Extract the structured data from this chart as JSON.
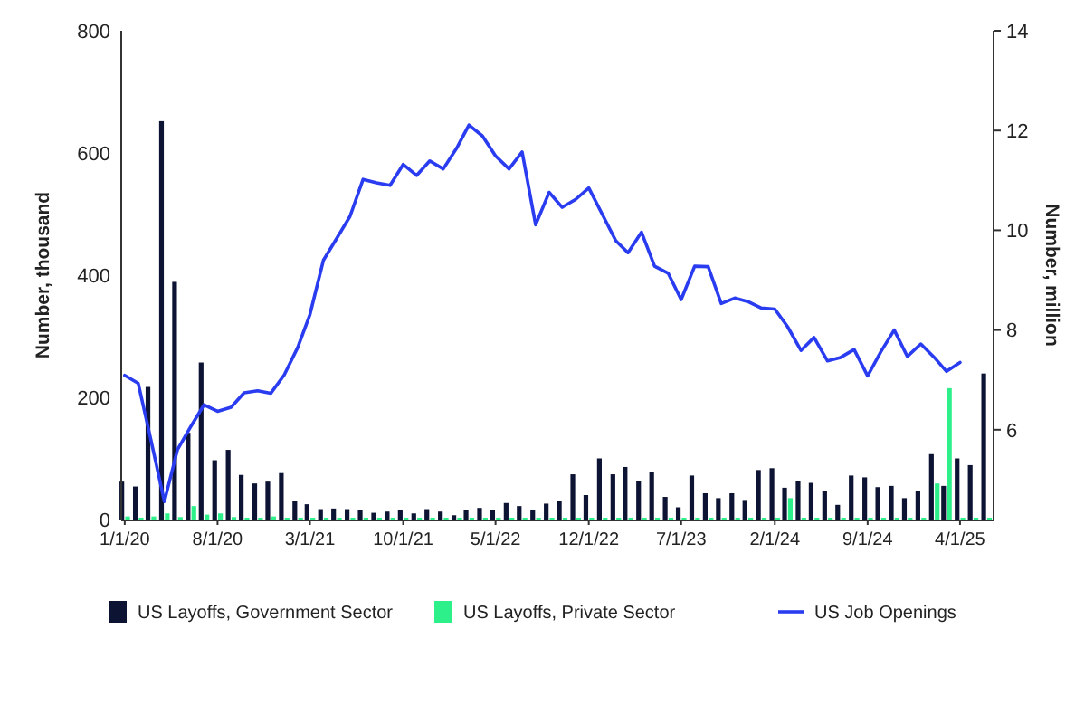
{
  "chart_data": {
    "type": "bar",
    "xlim": [
      "2019-12-24",
      "2025-06-17"
    ],
    "xticks": [
      {
        "value": "2020-01-01",
        "label": "1/1/20"
      },
      {
        "value": "2020-08-01",
        "label": "8/1/20"
      },
      {
        "value": "2021-03-01",
        "label": "3/1/21"
      },
      {
        "value": "2021-10-01",
        "label": "10/1/21"
      },
      {
        "value": "2022-05-01",
        "label": "5/1/22"
      },
      {
        "value": "2022-12-01",
        "label": "12/1/22"
      },
      {
        "value": "2023-07-01",
        "label": "7/1/23"
      },
      {
        "value": "2024-02-01",
        "label": "2/1/24"
      },
      {
        "value": "2024-09-01",
        "label": "9/1/24"
      },
      {
        "value": "2025-04-01",
        "label": "4/1/25"
      }
    ],
    "ylim": [
      0,
      800
    ],
    "yticks": [
      0,
      200,
      400,
      600,
      800
    ],
    "y2lim": [
      4.2,
      14
    ],
    "y2ticks": [
      6,
      8,
      10,
      12,
      14
    ],
    "ylabel": "Number, thousand",
    "y2label": "Number, million",
    "legend": "bottom",
    "grid": false,
    "series": [
      {
        "name": "US Layoffs, Government Sector",
        "color": "#0d1433",
        "x": [
          "2020-01",
          "2020-02",
          "2020-03",
          "2020-04",
          "2020-05",
          "2020-06",
          "2020-07",
          "2020-08",
          "2020-09",
          "2020-10",
          "2020-11",
          "2020-12",
          "2021-01",
          "2021-02",
          "2021-03",
          "2021-04",
          "2021-05",
          "2021-06",
          "2021-07",
          "2021-08",
          "2021-09",
          "2021-10",
          "2021-11",
          "2021-12",
          "2022-01",
          "2022-02",
          "2022-03",
          "2022-04",
          "2022-05",
          "2022-06",
          "2022-07",
          "2022-08",
          "2022-09",
          "2022-10",
          "2022-11",
          "2022-12",
          "2023-01",
          "2023-02",
          "2023-03",
          "2023-04",
          "2023-05",
          "2023-06",
          "2023-07",
          "2023-08",
          "2023-09",
          "2023-10",
          "2023-11",
          "2023-12",
          "2024-01",
          "2024-02",
          "2024-03",
          "2024-04",
          "2024-05",
          "2024-06",
          "2024-07",
          "2024-08",
          "2024-09",
          "2024-10",
          "2024-11",
          "2024-12",
          "2025-01",
          "2025-02",
          "2025-03",
          "2025-04",
          "2025-05",
          "2025-06"
        ],
        "values": [
          62,
          54,
          217,
          652,
          389,
          142,
          257,
          97,
          114,
          73,
          59,
          62,
          76,
          31,
          25,
          17,
          18,
          17,
          16,
          11,
          13,
          16,
          10,
          17,
          13,
          7,
          16,
          19,
          16,
          27,
          22,
          15,
          26,
          31,
          74,
          40,
          100,
          74,
          86,
          63,
          78,
          37,
          20,
          72,
          43,
          35,
          43,
          32,
          81,
          84,
          52,
          63,
          60,
          46,
          24,
          72,
          69,
          53,
          55,
          35,
          46,
          107,
          55,
          100,
          89,
          239
        ]
      },
      {
        "name": "US Layoffs, Private Sector",
        "color": "#2ef08a",
        "x": [
          "2020-01",
          "2020-02",
          "2020-03",
          "2020-04",
          "2020-05",
          "2020-06",
          "2020-07",
          "2020-08",
          "2020-09",
          "2020-10",
          "2020-11",
          "2020-12",
          "2021-01",
          "2021-02",
          "2021-03",
          "2021-04",
          "2021-05",
          "2021-06",
          "2021-07",
          "2021-08",
          "2021-09",
          "2021-10",
          "2021-11",
          "2021-12",
          "2022-01",
          "2022-02",
          "2022-03",
          "2022-04",
          "2022-05",
          "2022-06",
          "2022-07",
          "2022-08",
          "2022-09",
          "2022-10",
          "2022-11",
          "2022-12",
          "2023-01",
          "2023-02",
          "2023-03",
          "2023-04",
          "2023-05",
          "2023-06",
          "2023-07",
          "2023-08",
          "2023-09",
          "2023-10",
          "2023-11",
          "2023-12",
          "2024-01",
          "2024-02",
          "2024-03",
          "2024-04",
          "2024-05",
          "2024-06",
          "2024-07",
          "2024-08",
          "2024-09",
          "2024-10",
          "2024-11",
          "2024-12",
          "2025-01",
          "2025-02",
          "2025-03",
          "2025-04",
          "2025-05",
          "2025-06"
        ],
        "values": [
          5,
          3,
          5,
          10,
          4,
          22,
          8,
          10,
          4,
          3,
          3,
          5,
          3,
          3,
          3,
          3,
          3,
          3,
          3,
          3,
          3,
          3,
          3,
          3,
          3,
          3,
          3,
          3,
          3,
          3,
          3,
          3,
          3,
          3,
          3,
          3,
          3,
          3,
          3,
          3,
          3,
          3,
          3,
          3,
          3,
          3,
          3,
          3,
          3,
          3,
          35,
          3,
          3,
          3,
          3,
          3,
          3,
          3,
          3,
          3,
          3,
          59,
          215,
          3,
          3,
          3
        ]
      },
      {
        "name": "US Job Openings",
        "type": "line",
        "axis": "y2",
        "color": "#2a3cf0",
        "line_style": "solid",
        "marker": "none",
        "x": [
          "2020-01",
          "2020-02",
          "2020-03",
          "2020-04",
          "2020-05",
          "2020-06",
          "2020-07",
          "2020-08",
          "2020-09",
          "2020-10",
          "2020-11",
          "2020-12",
          "2021-01",
          "2021-02",
          "2021-03",
          "2021-04",
          "2021-05",
          "2021-06",
          "2021-07",
          "2021-08",
          "2021-09",
          "2021-10",
          "2021-11",
          "2021-12",
          "2022-01",
          "2022-02",
          "2022-03",
          "2022-04",
          "2022-05",
          "2022-06",
          "2022-07",
          "2022-08",
          "2022-09",
          "2022-10",
          "2022-11",
          "2022-12",
          "2023-01",
          "2023-02",
          "2023-03",
          "2023-04",
          "2023-05",
          "2023-06",
          "2023-07",
          "2023-08",
          "2023-09",
          "2023-10",
          "2023-11",
          "2023-12",
          "2024-01",
          "2024-02",
          "2024-03",
          "2024-04",
          "2024-05",
          "2024-06",
          "2024-07",
          "2024-08",
          "2024-09",
          "2024-10",
          "2024-11",
          "2024-12",
          "2025-01",
          "2025-02",
          "2025-03",
          "2025-04"
        ],
        "values": [
          7.09,
          6.93,
          5.8,
          4.56,
          5.6,
          6.07,
          6.5,
          6.37,
          6.45,
          6.74,
          6.78,
          6.73,
          7.1,
          7.65,
          8.31,
          9.4,
          9.83,
          10.28,
          11.02,
          10.95,
          10.9,
          11.32,
          11.1,
          11.39,
          11.23,
          11.65,
          12.11,
          11.89,
          11.49,
          11.23,
          11.57,
          10.11,
          10.76,
          10.46,
          10.62,
          10.85,
          10.32,
          9.79,
          9.55,
          9.96,
          9.28,
          9.14,
          8.61,
          9.28,
          9.27,
          8.53,
          8.64,
          8.57,
          8.44,
          8.42,
          8.07,
          7.59,
          7.85,
          7.38,
          7.45,
          7.61,
          7.08,
          7.56,
          8.0,
          7.47,
          7.72,
          7.45,
          7.17,
          7.35
        ]
      }
    ]
  }
}
